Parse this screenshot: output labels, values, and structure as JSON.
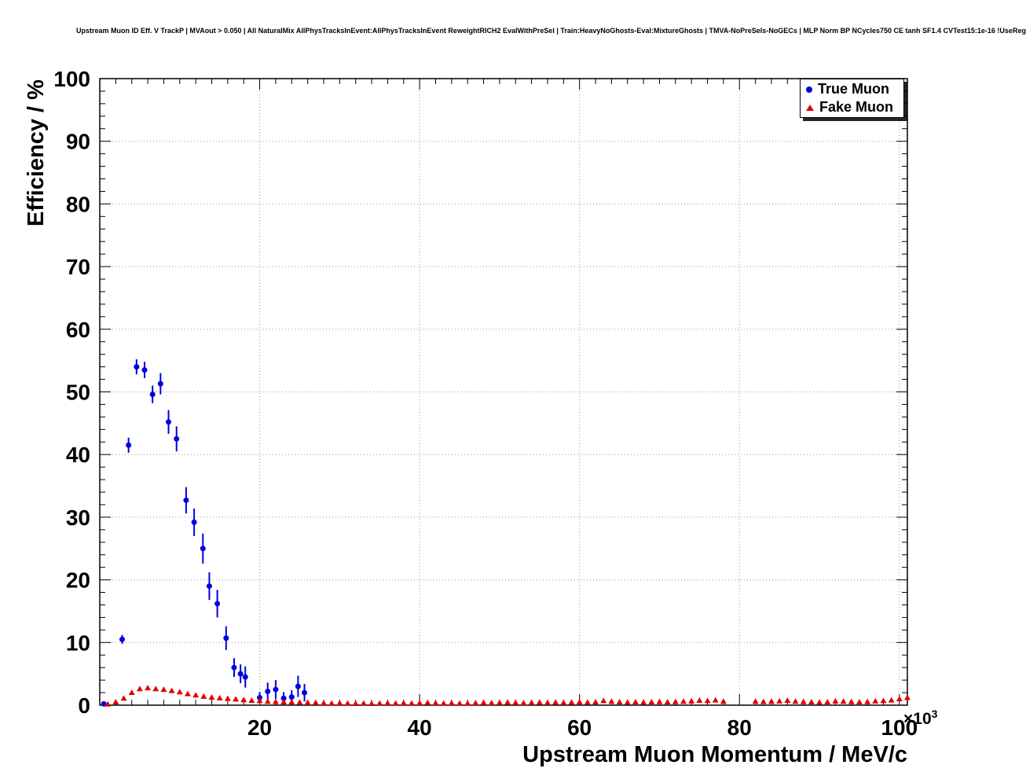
{
  "header": {
    "title": "Upstream Muon ID Eff. V TrackP | MVAout > 0.050 | All NaturalMix AllPhysTracksInEvent:AllPhysTracksInEvent ReweightRICH2 EvalWithPreSel | Train:HeavyNoGhosts-Eval:MixtureGhosts | TMVA-NoPreSels-NoGECs | MLP Norm BP NCycles750 CE tanh SF1.4 CVTest15:1e-16 !UseReg"
  },
  "chart_data": {
    "type": "scatter",
    "title": "Upstream Muon ID Eff. V TrackP | MVAout > 0.050",
    "xlabel": "Upstream Muon Momentum / MeV/c",
    "ylabel": "Efficiency / %",
    "x_scale": {
      "base": "×10",
      "exp": "3"
    },
    "xlim": [
      0,
      101000
    ],
    "ylim": [
      0,
      100
    ],
    "grid": "dotted",
    "x_ticks": {
      "values": [
        20000,
        40000,
        60000,
        80000,
        100000
      ],
      "labels": [
        "20",
        "40",
        "60",
        "80",
        "100"
      ],
      "minor_step": 2000
    },
    "y_ticks": {
      "values": [
        0,
        10,
        20,
        30,
        40,
        50,
        60,
        70,
        80,
        90,
        100
      ],
      "labels": [
        "0",
        "10",
        "20",
        "30",
        "40",
        "50",
        "60",
        "70",
        "80",
        "90",
        "100"
      ],
      "minor_step": 2
    },
    "style": {
      "grid_color": "#9a9a9a",
      "frame_color": "#000000",
      "background": "#ffffff",
      "true_muon_color": "#0000dd",
      "fake_muon_color": "#e00000"
    },
    "legend": {
      "position": "top-right",
      "entries": [
        {
          "label": "True Muon",
          "marker": "circle",
          "color": "#0000dd"
        },
        {
          "label": "Fake Muon",
          "marker": "triangle",
          "color": "#e00000"
        }
      ]
    },
    "series": [
      {
        "name": "True Muon",
        "marker": "circle",
        "color": "#0000dd",
        "points": [
          [
            500,
            0.2,
            0.2
          ],
          [
            2800,
            10.5,
            0.7
          ],
          [
            3600,
            41.5,
            1.2
          ],
          [
            4600,
            54.0,
            1.2
          ],
          [
            5600,
            53.5,
            1.3
          ],
          [
            6600,
            49.6,
            1.4
          ],
          [
            7600,
            51.3,
            1.7
          ],
          [
            8600,
            45.2,
            1.9
          ],
          [
            9600,
            42.5,
            2.0
          ],
          [
            10800,
            32.7,
            2.1
          ],
          [
            11800,
            29.2,
            2.2
          ],
          [
            12900,
            25.0,
            2.4
          ],
          [
            13700,
            19.0,
            2.2
          ],
          [
            14700,
            16.2,
            2.2
          ],
          [
            15800,
            10.7,
            1.9
          ],
          [
            16800,
            6.0,
            1.5
          ],
          [
            17600,
            5.0,
            1.5
          ],
          [
            18200,
            4.5,
            1.7
          ],
          [
            20000,
            1.2,
            0.9
          ],
          [
            21000,
            2.2,
            1.4
          ],
          [
            22000,
            2.5,
            1.5
          ],
          [
            23000,
            1.1,
            1.0
          ],
          [
            24000,
            1.3,
            1.1
          ],
          [
            24800,
            3.0,
            1.7
          ],
          [
            25600,
            2.0,
            1.4
          ]
        ]
      },
      {
        "name": "Fake Muon",
        "marker": "triangle",
        "color": "#e00000",
        "points": [
          [
            1000,
            0.15,
            0.1
          ],
          [
            2000,
            0.5,
            0.12
          ],
          [
            3000,
            1.1,
            0.15
          ],
          [
            4000,
            2.0,
            0.18
          ],
          [
            5000,
            2.6,
            0.2
          ],
          [
            6000,
            2.75,
            0.2
          ],
          [
            7000,
            2.6,
            0.2
          ],
          [
            8000,
            2.5,
            0.2
          ],
          [
            9000,
            2.3,
            0.18
          ],
          [
            10000,
            2.1,
            0.18
          ],
          [
            11000,
            1.8,
            0.16
          ],
          [
            12000,
            1.6,
            0.15
          ],
          [
            13000,
            1.4,
            0.15
          ],
          [
            14000,
            1.25,
            0.14
          ],
          [
            15000,
            1.15,
            0.13
          ],
          [
            16000,
            1.05,
            0.13
          ],
          [
            17000,
            0.95,
            0.12
          ],
          [
            18000,
            0.85,
            0.12
          ],
          [
            19000,
            0.75,
            0.11
          ],
          [
            20000,
            0.7,
            0.11
          ],
          [
            21000,
            0.6,
            0.1
          ],
          [
            22000,
            0.55,
            0.1
          ],
          [
            23000,
            0.5,
            0.1
          ],
          [
            24000,
            0.5,
            0.1
          ],
          [
            25000,
            0.45,
            0.1
          ],
          [
            26000,
            0.4,
            0.09
          ],
          [
            27000,
            0.4,
            0.09
          ],
          [
            28000,
            0.35,
            0.09
          ],
          [
            29000,
            0.3,
            0.08
          ],
          [
            30000,
            0.35,
            0.09
          ],
          [
            31000,
            0.3,
            0.08
          ],
          [
            32000,
            0.25,
            0.08
          ],
          [
            33000,
            0.3,
            0.08
          ],
          [
            34000,
            0.25,
            0.08
          ],
          [
            35000,
            0.3,
            0.08
          ],
          [
            36000,
            0.35,
            0.09
          ],
          [
            37000,
            0.3,
            0.08
          ],
          [
            38000,
            0.35,
            0.09
          ],
          [
            39000,
            0.3,
            0.08
          ],
          [
            40000,
            0.35,
            0.09
          ],
          [
            41000,
            0.4,
            0.09
          ],
          [
            42000,
            0.35,
            0.09
          ],
          [
            43000,
            0.3,
            0.08
          ],
          [
            44000,
            0.35,
            0.09
          ],
          [
            45000,
            0.3,
            0.08
          ],
          [
            46000,
            0.3,
            0.08
          ],
          [
            47000,
            0.35,
            0.09
          ],
          [
            48000,
            0.4,
            0.09
          ],
          [
            49000,
            0.35,
            0.09
          ],
          [
            50000,
            0.4,
            0.09
          ],
          [
            51000,
            0.45,
            0.1
          ],
          [
            52000,
            0.4,
            0.09
          ],
          [
            53000,
            0.35,
            0.09
          ],
          [
            54000,
            0.4,
            0.09
          ],
          [
            55000,
            0.45,
            0.1
          ],
          [
            56000,
            0.4,
            0.09
          ],
          [
            57000,
            0.45,
            0.1
          ],
          [
            58000,
            0.4,
            0.09
          ],
          [
            59000,
            0.45,
            0.1
          ],
          [
            60000,
            0.5,
            0.1
          ],
          [
            61000,
            0.45,
            0.1
          ],
          [
            62000,
            0.5,
            0.1
          ],
          [
            63000,
            0.7,
            0.12
          ],
          [
            64000,
            0.6,
            0.11
          ],
          [
            65000,
            0.5,
            0.1
          ],
          [
            66000,
            0.45,
            0.1
          ],
          [
            67000,
            0.5,
            0.1
          ],
          [
            68000,
            0.45,
            0.1
          ],
          [
            69000,
            0.5,
            0.1
          ],
          [
            70000,
            0.55,
            0.11
          ],
          [
            71000,
            0.5,
            0.1
          ],
          [
            72000,
            0.55,
            0.11
          ],
          [
            73000,
            0.6,
            0.11
          ],
          [
            74000,
            0.65,
            0.12
          ],
          [
            75000,
            0.75,
            0.12
          ],
          [
            76000,
            0.7,
            0.12
          ],
          [
            77000,
            0.8,
            0.13
          ],
          [
            78000,
            0.6,
            0.11
          ],
          [
            82000,
            0.6,
            0.12
          ],
          [
            83000,
            0.55,
            0.11
          ],
          [
            84000,
            0.6,
            0.12
          ],
          [
            85000,
            0.65,
            0.12
          ],
          [
            86000,
            0.75,
            0.13
          ],
          [
            87000,
            0.6,
            0.12
          ],
          [
            88000,
            0.55,
            0.11
          ],
          [
            89000,
            0.5,
            0.11
          ],
          [
            90000,
            0.45,
            0.1
          ],
          [
            91000,
            0.5,
            0.11
          ],
          [
            92000,
            0.65,
            0.12
          ],
          [
            93000,
            0.6,
            0.12
          ],
          [
            94000,
            0.55,
            0.11
          ],
          [
            95000,
            0.5,
            0.11
          ],
          [
            96000,
            0.55,
            0.11
          ],
          [
            97000,
            0.65,
            0.12
          ],
          [
            98000,
            0.7,
            0.12
          ],
          [
            99000,
            0.8,
            0.13
          ],
          [
            100000,
            1.0,
            0.15
          ],
          [
            101000,
            1.2,
            0.18
          ]
        ]
      }
    ]
  }
}
